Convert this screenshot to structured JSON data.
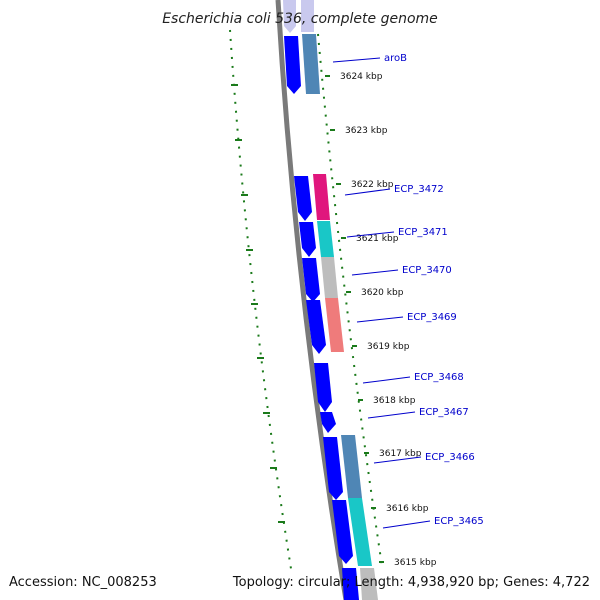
{
  "title": "Escherichia coli 536, complete genome",
  "footer": {
    "accession": "Accession: NC_008253",
    "summary": "Topology: circular; Length: 4,938,920 bp; Genes: 4,722"
  },
  "colors": {
    "background": "#ffffff",
    "backbone": "#777777",
    "cds_strand": "#0000ff",
    "tick_dots": "#1a7a1a",
    "label_line": "#0000cc",
    "label_text": "#0000cc",
    "category_steelblue": "#4f86b5",
    "category_pink": "#e0167d",
    "category_cyan": "#19c7c7",
    "category_gray": "#bdbdbd",
    "category_salmon": "#ef7b7b",
    "category_lavender": "#c9c9ee"
  },
  "ticks": [
    {
      "label": "3624 kbp"
    },
    {
      "label": "3623 kbp"
    },
    {
      "label": "3622 kbp"
    },
    {
      "label": "3621 kbp"
    },
    {
      "label": "3620 kbp"
    },
    {
      "label": "3619 kbp"
    },
    {
      "label": "3618 kbp"
    },
    {
      "label": "3617 kbp"
    },
    {
      "label": "3616 kbp"
    },
    {
      "label": "3615 kbp"
    }
  ],
  "genes": [
    {
      "label": "aroB",
      "category": "steelblue"
    },
    {
      "label": "ECP_3472",
      "category": "pink"
    },
    {
      "label": "ECP_3471",
      "category": "cyan"
    },
    {
      "label": "ECP_3470",
      "category": "gray"
    },
    {
      "label": "ECP_3469",
      "category": "salmon"
    },
    {
      "label": "ECP_3468",
      "category": "none"
    },
    {
      "label": "ECP_3467",
      "category": "none"
    },
    {
      "label": "ECP_3466",
      "category": "steelblue"
    },
    {
      "label": "ECP_3465",
      "category": "cyan"
    }
  ]
}
